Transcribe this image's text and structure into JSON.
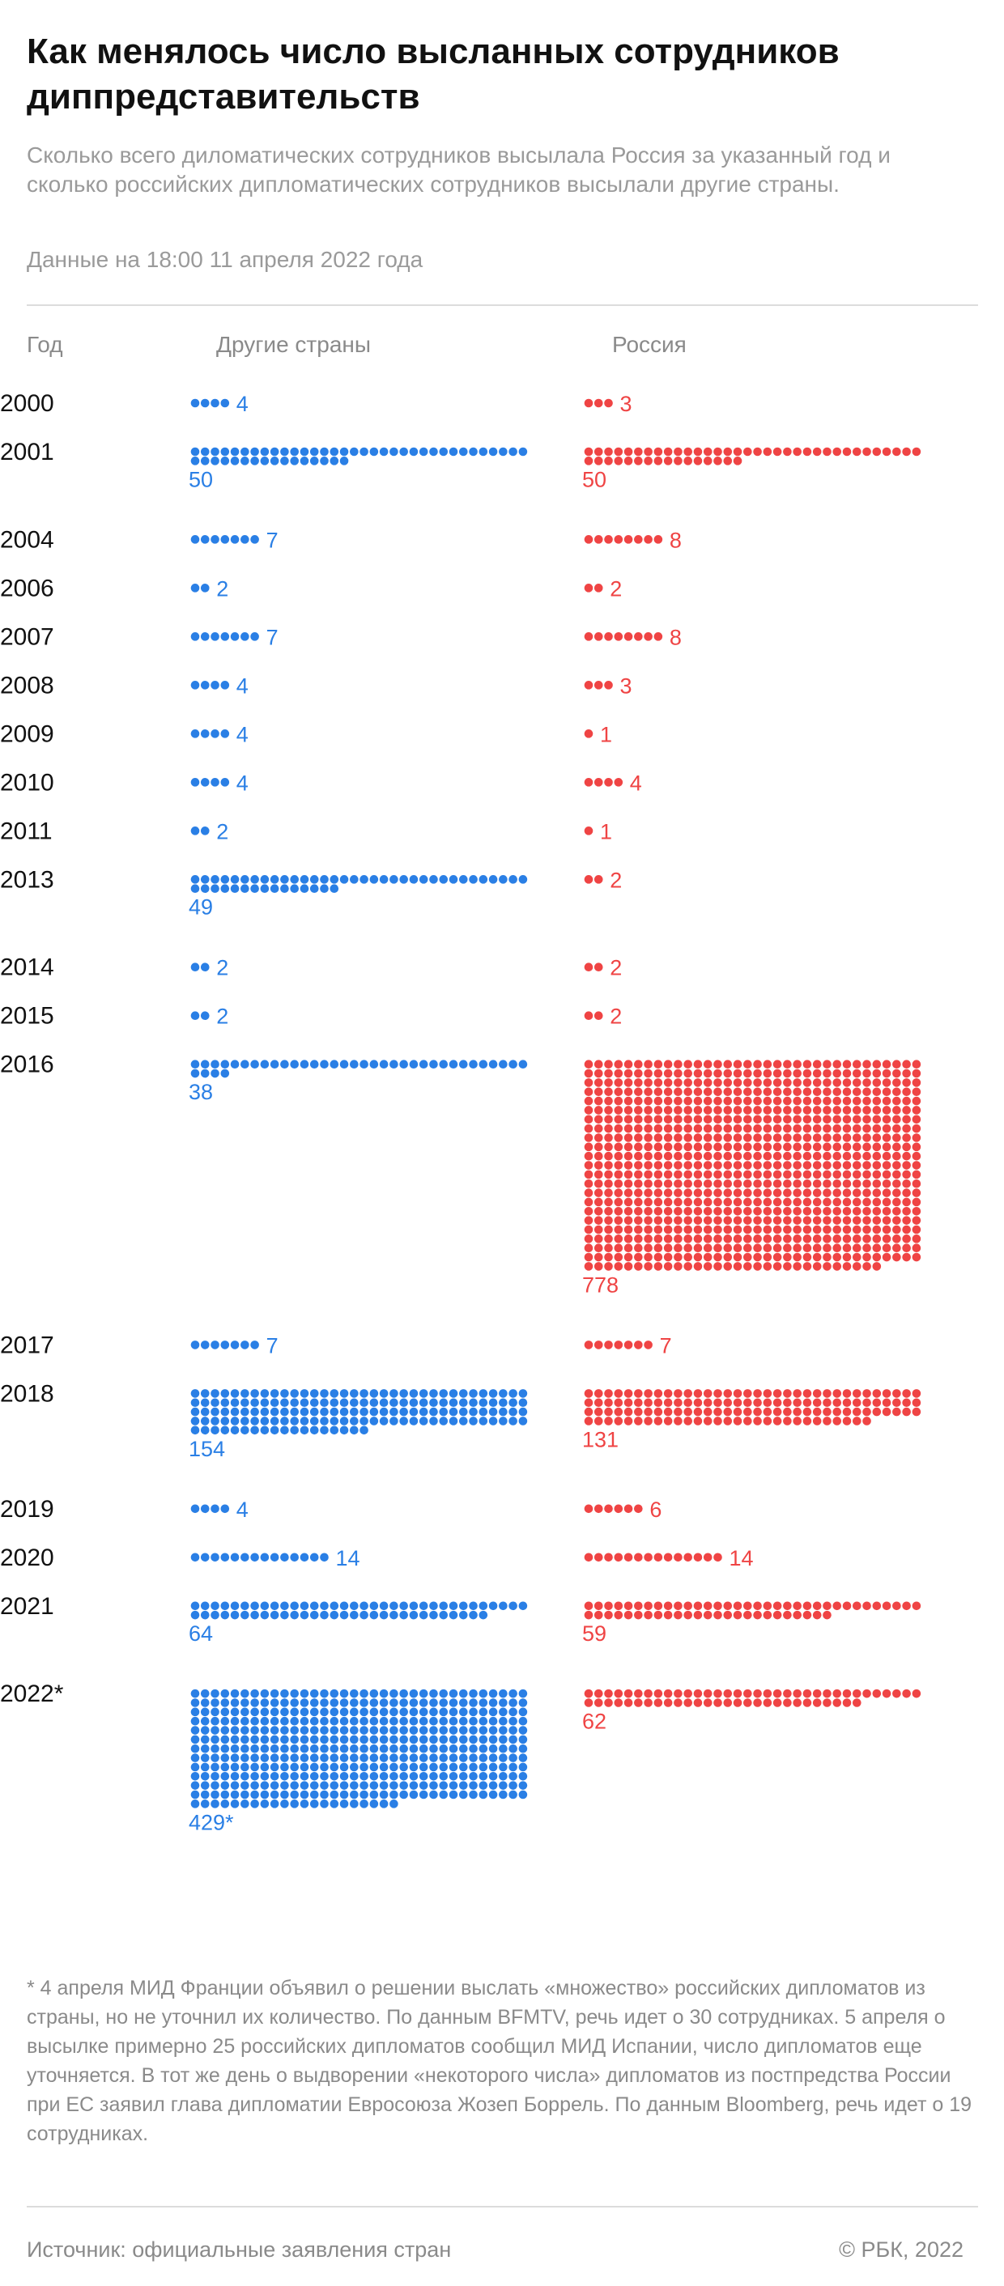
{
  "header": {
    "title": "Как менялось число высланных сотрудников диппредставительств",
    "subtitle": "Сколько всего диломатических сотрудников высылала Россия за указанный год и сколько российских дипломатических сотрудников высылали другие страны.",
    "as_of": "Данные на 18:00 11 апреля 2022 года"
  },
  "columns": {
    "year": "Год",
    "others": "Другие страны",
    "russia": "Россия"
  },
  "colors": {
    "others": "#2a7fe5",
    "russia": "#ef4444"
  },
  "chart_data": {
    "type": "dot-matrix",
    "categories": [
      "2000",
      "2001",
      "2004",
      "2006",
      "2007",
      "2008",
      "2009",
      "2010",
      "2011",
      "2013",
      "2014",
      "2015",
      "2016",
      "2017",
      "2018",
      "2019",
      "2020",
      "2021",
      "2022*"
    ],
    "series": [
      {
        "name": "Другие страны",
        "values": [
          4,
          50,
          7,
          2,
          7,
          4,
          4,
          4,
          2,
          49,
          2,
          2,
          38,
          7,
          154,
          4,
          14,
          64,
          429
        ],
        "labels": [
          "4",
          "50",
          "7",
          "2",
          "7",
          "4",
          "4",
          "4",
          "2",
          "49",
          "2",
          "2",
          "38",
          "7",
          "154",
          "4",
          "14",
          "64",
          "429*"
        ]
      },
      {
        "name": "Россия",
        "values": [
          3,
          50,
          8,
          2,
          8,
          3,
          1,
          4,
          1,
          2,
          2,
          2,
          778,
          7,
          131,
          6,
          14,
          59,
          62
        ],
        "labels": [
          "3",
          "50",
          "8",
          "2",
          "8",
          "3",
          "1",
          "4",
          "1",
          "2",
          "2",
          "2",
          "778",
          "7",
          "131",
          "6",
          "14",
          "59",
          "62"
        ]
      }
    ]
  },
  "footnote": "* 4 апреля МИД Франции объявил о решении выслать «множество» российских дипломатов из страны, но не уточнил их количество. По данным BFMTV, речь идет о 30 сотрудниках. 5 апреля о высылке примерно 25 российских дипломатов сообщил МИД Испании, число дипломатов еще уточняется. В тот же день о выдворении «некоторого числа» дипломатов из постпредства России при ЕС заявил глава дипломатии Евросоюза Жозеп Боррель. По данным Bloomberg, речь идет о 19 сотрудниках.",
  "footer": {
    "source": "Источник: официальные заявления стран",
    "copyright": "© РБК, 2022"
  }
}
